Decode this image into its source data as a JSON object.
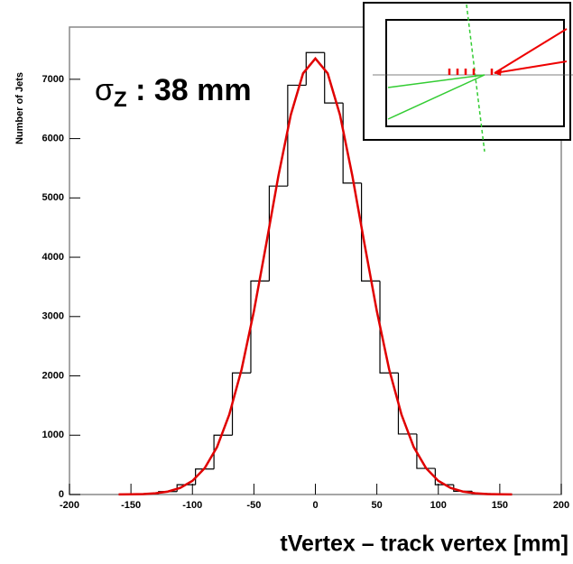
{
  "chart_data": {
    "type": "histogram",
    "ylabel": "Number of Jets",
    "xlabel": "tVertex – track vertex [mm]",
    "annotation": {
      "symbol": "σ",
      "subscript": "Z",
      "text": " : 38 mm"
    },
    "bins": [
      -157.5,
      -142.5,
      -127.5,
      -112.5,
      -97.5,
      -82.5,
      -67.5,
      -52.5,
      -37.5,
      -22.5,
      -7.5,
      7.5,
      22.5,
      37.5,
      52.5,
      67.5,
      82.5,
      97.5,
      112.5,
      127.5,
      142.5,
      157.5
    ],
    "values": [
      2,
      12,
      50,
      165,
      430,
      1000,
      2050,
      3600,
      5200,
      6900,
      7450,
      6600,
      5250,
      3600,
      2050,
      1020,
      440,
      165,
      55,
      15,
      3
    ],
    "color": "#000000",
    "fit": {
      "type": "line",
      "x": [
        -160,
        -150,
        -140,
        -130,
        -120,
        -110,
        -100,
        -90,
        -80,
        -70,
        -60,
        -50,
        -40,
        -30,
        -20,
        -10,
        0,
        10,
        20,
        30,
        40,
        50,
        60,
        70,
        80,
        90,
        100,
        110,
        120,
        130,
        140,
        150,
        160
      ],
      "values": [
        1,
        3,
        8,
        21,
        50,
        111,
        230,
        445,
        800,
        1350,
        2110,
        3090,
        4220,
        5380,
        6400,
        7100,
        7350,
        7100,
        6400,
        5380,
        4220,
        3090,
        2110,
        1350,
        800,
        445,
        230,
        111,
        50,
        21,
        8,
        3,
        1
      ],
      "color": "#e00000"
    },
    "xlim": [
      -200,
      200
    ],
    "xticks": [
      -200,
      -150,
      -100,
      -50,
      0,
      50,
      100,
      150,
      200
    ],
    "ylim": [
      0,
      7880
    ],
    "yticks": [
      0,
      1000,
      2000,
      3000,
      4000,
      5000,
      6000,
      7000
    ]
  }
}
